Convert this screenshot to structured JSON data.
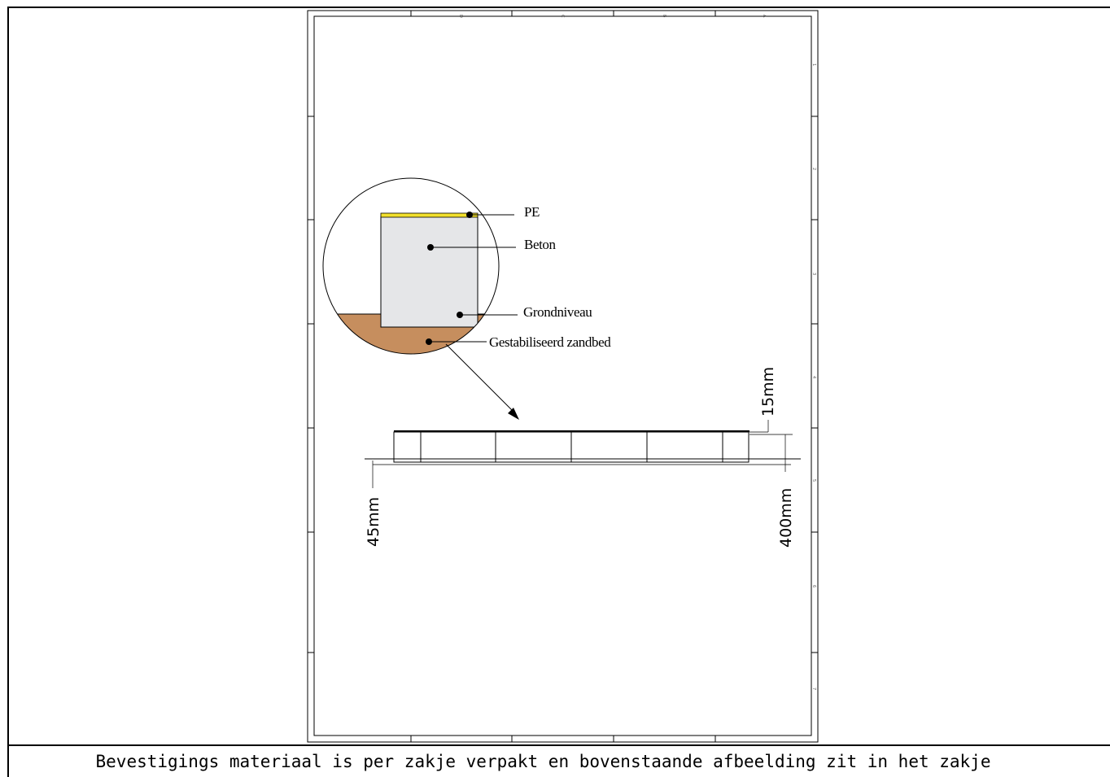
{
  "labels": {
    "pe": "PE",
    "beton": "Beton",
    "grondniveau": "Grondniveau",
    "zandbed": "Gestabiliseerd zandbed"
  },
  "dimensions": {
    "top_offset": "15mm",
    "left_offset": "45mm",
    "right_height": "400mm"
  },
  "sheet": {
    "column_zones": [
      "D",
      "C",
      "B",
      "A"
    ],
    "row_zones": [
      "1",
      "2",
      "3",
      "4",
      "5",
      "6",
      "7"
    ]
  },
  "colors": {
    "pe": "#f2e02c",
    "beton": "#e5e6e8",
    "zandbed": "#c68e5e"
  },
  "caption": "Bevestigings materiaal is per zakje verpakt en bovenstaande afbeelding zit in het zakje"
}
